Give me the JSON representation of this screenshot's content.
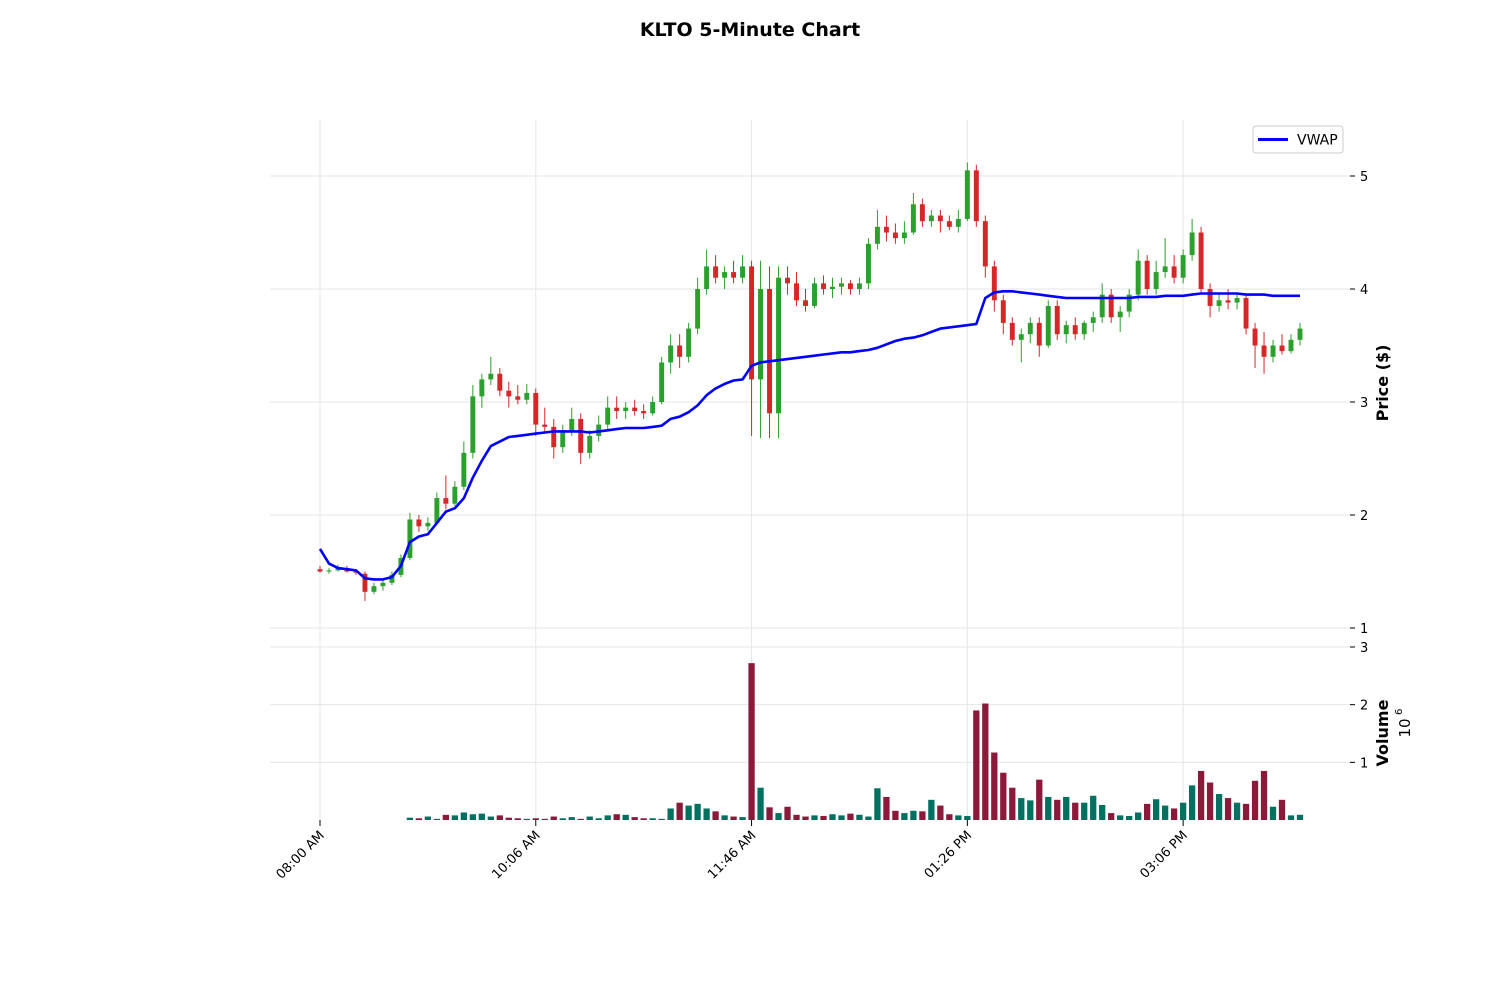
{
  "chart_data": {
    "type": "candlestick",
    "title": "KLTO 5-Minute Chart",
    "ylabel": "Price ($)",
    "volume_label": "Volume",
    "volume_exponent_base": "10",
    "volume_exponent": "6",
    "x_tick_labels": [
      "08:00 AM",
      "10:06 AM",
      "11:46 AM",
      "01:26 PM",
      "03:06 PM"
    ],
    "x_tick_index": [
      0,
      24,
      48,
      72,
      96
    ],
    "bar_count": 110,
    "price_ylim": [
      0.85,
      5.5
    ],
    "price_ticks": [
      1,
      2,
      3,
      4,
      5
    ],
    "volume_ylim": [
      0,
      3000000
    ],
    "volume_ticks": [
      1,
      2,
      3
    ],
    "grid": true,
    "legend": {
      "position": "top-right",
      "entries": [
        "VWAP"
      ]
    },
    "colors": {
      "up": "#2ca02c",
      "down": "#d62728",
      "vwap": "#0000ff",
      "volume_up": "#007060",
      "volume_down": "#8b1a3a",
      "grid": "#e6e6e6"
    },
    "vwap": [
      1.7,
      1.57,
      1.53,
      1.52,
      1.51,
      1.44,
      1.43,
      1.43,
      1.45,
      1.55,
      1.76,
      1.81,
      1.83,
      1.93,
      2.03,
      2.06,
      2.15,
      2.33,
      2.48,
      2.61,
      2.65,
      2.69,
      2.7,
      2.71,
      2.72,
      2.73,
      2.74,
      2.74,
      2.74,
      2.74,
      2.73,
      2.74,
      2.75,
      2.76,
      2.77,
      2.77,
      2.77,
      2.78,
      2.79,
      2.85,
      2.87,
      2.91,
      2.97,
      3.06,
      3.12,
      3.16,
      3.19,
      3.2,
      3.32,
      3.35,
      3.36,
      3.37,
      3.38,
      3.39,
      3.4,
      3.41,
      3.42,
      3.43,
      3.44,
      3.44,
      3.45,
      3.46,
      3.48,
      3.51,
      3.54,
      3.56,
      3.57,
      3.59,
      3.62,
      3.65,
      3.66,
      3.67,
      3.68,
      3.69,
      3.92,
      3.97,
      3.98,
      3.98,
      3.97,
      3.96,
      3.95,
      3.94,
      3.93,
      3.92,
      3.92,
      3.92,
      3.92,
      3.92,
      3.92,
      3.92,
      3.92,
      3.93,
      3.93,
      3.93,
      3.94,
      3.94,
      3.94,
      3.95,
      3.96,
      3.96,
      3.96,
      3.96,
      3.96,
      3.95,
      3.95,
      3.95,
      3.94,
      3.94,
      3.94,
      3.94
    ],
    "candles": [
      {
        "o": 1.52,
        "h": 1.55,
        "l": 1.49,
        "c": 1.5
      },
      {
        "o": 1.5,
        "h": 1.53,
        "l": 1.48,
        "c": 1.51
      },
      {
        "o": 1.51,
        "h": 1.56,
        "l": 1.5,
        "c": 1.53
      },
      {
        "o": 1.53,
        "h": 1.55,
        "l": 1.49,
        "c": 1.5
      },
      {
        "o": 1.5,
        "h": 1.52,
        "l": 1.47,
        "c": 1.49
      },
      {
        "o": 1.48,
        "h": 1.5,
        "l": 1.24,
        "c": 1.32
      },
      {
        "o": 1.32,
        "h": 1.4,
        "l": 1.3,
        "c": 1.37
      },
      {
        "o": 1.37,
        "h": 1.43,
        "l": 1.33,
        "c": 1.4
      },
      {
        "o": 1.4,
        "h": 1.5,
        "l": 1.38,
        "c": 1.47
      },
      {
        "o": 1.47,
        "h": 1.65,
        "l": 1.45,
        "c": 1.62
      },
      {
        "o": 1.62,
        "h": 2.02,
        "l": 1.6,
        "c": 1.96
      },
      {
        "o": 1.96,
        "h": 2.0,
        "l": 1.85,
        "c": 1.9
      },
      {
        "o": 1.9,
        "h": 1.98,
        "l": 1.86,
        "c": 1.93
      },
      {
        "o": 1.93,
        "h": 2.2,
        "l": 1.92,
        "c": 2.15
      },
      {
        "o": 2.15,
        "h": 2.35,
        "l": 2.05,
        "c": 2.1
      },
      {
        "o": 2.1,
        "h": 2.3,
        "l": 2.08,
        "c": 2.25
      },
      {
        "o": 2.25,
        "h": 2.65,
        "l": 2.22,
        "c": 2.55
      },
      {
        "o": 2.55,
        "h": 3.15,
        "l": 2.5,
        "c": 3.05
      },
      {
        "o": 3.05,
        "h": 3.25,
        "l": 2.95,
        "c": 3.2
      },
      {
        "o": 3.2,
        "h": 3.4,
        "l": 3.15,
        "c": 3.25
      },
      {
        "o": 3.25,
        "h": 3.3,
        "l": 3.05,
        "c": 3.1
      },
      {
        "o": 3.1,
        "h": 3.18,
        "l": 2.95,
        "c": 3.05
      },
      {
        "o": 3.05,
        "h": 3.15,
        "l": 2.98,
        "c": 3.02
      },
      {
        "o": 3.02,
        "h": 3.16,
        "l": 2.98,
        "c": 3.08
      },
      {
        "o": 3.08,
        "h": 3.12,
        "l": 2.7,
        "c": 2.8
      },
      {
        "o": 2.8,
        "h": 2.95,
        "l": 2.72,
        "c": 2.78
      },
      {
        "o": 2.78,
        "h": 2.85,
        "l": 2.5,
        "c": 2.6
      },
      {
        "o": 2.6,
        "h": 2.8,
        "l": 2.55,
        "c": 2.75
      },
      {
        "o": 2.75,
        "h": 2.95,
        "l": 2.7,
        "c": 2.85
      },
      {
        "o": 2.85,
        "h": 2.9,
        "l": 2.45,
        "c": 2.55
      },
      {
        "o": 2.55,
        "h": 2.75,
        "l": 2.5,
        "c": 2.7
      },
      {
        "o": 2.7,
        "h": 2.88,
        "l": 2.65,
        "c": 2.8
      },
      {
        "o": 2.8,
        "h": 3.05,
        "l": 2.75,
        "c": 2.95
      },
      {
        "o": 2.95,
        "h": 3.05,
        "l": 2.85,
        "c": 2.92
      },
      {
        "o": 2.92,
        "h": 3.0,
        "l": 2.85,
        "c": 2.95
      },
      {
        "o": 2.95,
        "h": 3.02,
        "l": 2.88,
        "c": 2.92
      },
      {
        "o": 2.92,
        "h": 2.98,
        "l": 2.85,
        "c": 2.9
      },
      {
        "o": 2.9,
        "h": 3.05,
        "l": 2.88,
        "c": 3.0
      },
      {
        "o": 3.0,
        "h": 3.4,
        "l": 2.98,
        "c": 3.35
      },
      {
        "o": 3.35,
        "h": 3.6,
        "l": 3.25,
        "c": 3.5
      },
      {
        "o": 3.5,
        "h": 3.6,
        "l": 3.3,
        "c": 3.4
      },
      {
        "o": 3.4,
        "h": 3.7,
        "l": 3.35,
        "c": 3.65
      },
      {
        "o": 3.65,
        "h": 4.1,
        "l": 3.6,
        "c": 4.0
      },
      {
        "o": 4.0,
        "h": 4.35,
        "l": 3.95,
        "c": 4.2
      },
      {
        "o": 4.2,
        "h": 4.3,
        "l": 4.05,
        "c": 4.1
      },
      {
        "o": 4.1,
        "h": 4.2,
        "l": 4.0,
        "c": 4.15
      },
      {
        "o": 4.15,
        "h": 4.25,
        "l": 4.05,
        "c": 4.1
      },
      {
        "o": 4.1,
        "h": 4.3,
        "l": 4.05,
        "c": 4.2
      },
      {
        "o": 4.2,
        "h": 4.25,
        "l": 2.7,
        "c": 3.2
      },
      {
        "o": 3.2,
        "h": 4.25,
        "l": 2.68,
        "c": 4.0
      },
      {
        "o": 4.0,
        "h": 4.2,
        "l": 2.68,
        "c": 2.9
      },
      {
        "o": 2.9,
        "h": 4.2,
        "l": 2.68,
        "c": 4.1
      },
      {
        "o": 4.1,
        "h": 4.2,
        "l": 3.95,
        "c": 4.05
      },
      {
        "o": 4.05,
        "h": 4.15,
        "l": 3.85,
        "c": 3.9
      },
      {
        "o": 3.9,
        "h": 4.0,
        "l": 3.8,
        "c": 3.85
      },
      {
        "o": 3.85,
        "h": 4.1,
        "l": 3.83,
        "c": 4.05
      },
      {
        "o": 4.05,
        "h": 4.12,
        "l": 3.95,
        "c": 4.0
      },
      {
        "o": 4.0,
        "h": 4.1,
        "l": 3.92,
        "c": 4.02
      },
      {
        "o": 4.02,
        "h": 4.1,
        "l": 3.95,
        "c": 4.05
      },
      {
        "o": 4.05,
        "h": 4.08,
        "l": 3.95,
        "c": 4.0
      },
      {
        "o": 4.0,
        "h": 4.1,
        "l": 3.95,
        "c": 4.05
      },
      {
        "o": 4.05,
        "h": 4.45,
        "l": 4.0,
        "c": 4.4
      },
      {
        "o": 4.4,
        "h": 4.7,
        "l": 4.35,
        "c": 4.55
      },
      {
        "o": 4.55,
        "h": 4.65,
        "l": 4.42,
        "c": 4.5
      },
      {
        "o": 4.5,
        "h": 4.58,
        "l": 4.4,
        "c": 4.45
      },
      {
        "o": 4.45,
        "h": 4.6,
        "l": 4.4,
        "c": 4.5
      },
      {
        "o": 4.5,
        "h": 4.85,
        "l": 4.48,
        "c": 4.75
      },
      {
        "o": 4.75,
        "h": 4.8,
        "l": 4.55,
        "c": 4.6
      },
      {
        "o": 4.6,
        "h": 4.7,
        "l": 4.55,
        "c": 4.65
      },
      {
        "o": 4.65,
        "h": 4.7,
        "l": 4.5,
        "c": 4.6
      },
      {
        "o": 4.6,
        "h": 4.65,
        "l": 4.52,
        "c": 4.55
      },
      {
        "o": 4.55,
        "h": 4.7,
        "l": 4.5,
        "c": 4.62
      },
      {
        "o": 4.62,
        "h": 5.12,
        "l": 4.6,
        "c": 5.05
      },
      {
        "o": 5.05,
        "h": 5.1,
        "l": 4.55,
        "c": 4.6
      },
      {
        "o": 4.6,
        "h": 4.65,
        "l": 4.1,
        "c": 4.2
      },
      {
        "o": 4.2,
        "h": 4.25,
        "l": 3.8,
        "c": 3.9
      },
      {
        "o": 3.9,
        "h": 3.95,
        "l": 3.6,
        "c": 3.7
      },
      {
        "o": 3.7,
        "h": 3.75,
        "l": 3.5,
        "c": 3.55
      },
      {
        "o": 3.55,
        "h": 3.65,
        "l": 3.35,
        "c": 3.6
      },
      {
        "o": 3.6,
        "h": 3.75,
        "l": 3.52,
        "c": 3.7
      },
      {
        "o": 3.7,
        "h": 3.75,
        "l": 3.4,
        "c": 3.5
      },
      {
        "o": 3.5,
        "h": 3.9,
        "l": 3.48,
        "c": 3.85
      },
      {
        "o": 3.85,
        "h": 3.9,
        "l": 3.55,
        "c": 3.6
      },
      {
        "o": 3.6,
        "h": 3.72,
        "l": 3.52,
        "c": 3.68
      },
      {
        "o": 3.68,
        "h": 3.75,
        "l": 3.55,
        "c": 3.6
      },
      {
        "o": 3.6,
        "h": 3.72,
        "l": 3.55,
        "c": 3.7
      },
      {
        "o": 3.7,
        "h": 3.8,
        "l": 3.62,
        "c": 3.75
      },
      {
        "o": 3.75,
        "h": 4.05,
        "l": 3.7,
        "c": 3.95
      },
      {
        "o": 3.95,
        "h": 4.0,
        "l": 3.7,
        "c": 3.75
      },
      {
        "o": 3.75,
        "h": 3.85,
        "l": 3.62,
        "c": 3.8
      },
      {
        "o": 3.8,
        "h": 4.0,
        "l": 3.75,
        "c": 3.95
      },
      {
        "o": 3.95,
        "h": 4.35,
        "l": 3.9,
        "c": 4.25
      },
      {
        "o": 4.25,
        "h": 4.3,
        "l": 3.95,
        "c": 4.0
      },
      {
        "o": 4.0,
        "h": 4.25,
        "l": 3.95,
        "c": 4.15
      },
      {
        "o": 4.15,
        "h": 4.45,
        "l": 4.1,
        "c": 4.2
      },
      {
        "o": 4.2,
        "h": 4.3,
        "l": 4.05,
        "c": 4.1
      },
      {
        "o": 4.1,
        "h": 4.35,
        "l": 4.05,
        "c": 4.3
      },
      {
        "o": 4.3,
        "h": 4.62,
        "l": 4.25,
        "c": 4.5
      },
      {
        "o": 4.5,
        "h": 4.55,
        "l": 3.95,
        "c": 4.0
      },
      {
        "o": 4.0,
        "h": 4.05,
        "l": 3.75,
        "c": 3.85
      },
      {
        "o": 3.85,
        "h": 3.95,
        "l": 3.8,
        "c": 3.9
      },
      {
        "o": 3.9,
        "h": 4.0,
        "l": 3.82,
        "c": 3.88
      },
      {
        "o": 3.88,
        "h": 3.95,
        "l": 3.82,
        "c": 3.92
      },
      {
        "o": 3.92,
        "h": 3.95,
        "l": 3.6,
        "c": 3.65
      },
      {
        "o": 3.65,
        "h": 3.7,
        "l": 3.3,
        "c": 3.5
      },
      {
        "o": 3.5,
        "h": 3.62,
        "l": 3.25,
        "c": 3.4
      },
      {
        "o": 3.4,
        "h": 3.55,
        "l": 3.35,
        "c": 3.5
      },
      {
        "o": 3.5,
        "h": 3.6,
        "l": 3.42,
        "c": 3.45
      },
      {
        "o": 3.45,
        "h": 3.6,
        "l": 3.43,
        "c": 3.55
      },
      {
        "o": 3.55,
        "h": 3.7,
        "l": 3.5,
        "c": 3.65
      }
    ],
    "volumes": [
      0,
      0,
      0,
      0,
      0,
      0,
      0,
      0,
      0,
      0,
      40000,
      30000,
      60000,
      20000,
      90000,
      80000,
      130000,
      100000,
      110000,
      60000,
      80000,
      40000,
      30000,
      20000,
      30000,
      20000,
      60000,
      30000,
      50000,
      20000,
      60000,
      30000,
      80000,
      100000,
      90000,
      50000,
      30000,
      30000,
      20000,
      200000,
      300000,
      250000,
      280000,
      200000,
      150000,
      80000,
      60000,
      50000,
      2720000,
      560000,
      220000,
      120000,
      230000,
      90000,
      60000,
      80000,
      70000,
      100000,
      80000,
      110000,
      90000,
      60000,
      550000,
      400000,
      160000,
      120000,
      160000,
      150000,
      350000,
      250000,
      100000,
      80000,
      70000,
      1900000,
      2020000,
      1170000,
      820000,
      560000,
      380000,
      340000,
      700000,
      400000,
      350000,
      400000,
      300000,
      300000,
      420000,
      260000,
      120000,
      80000,
      70000,
      130000,
      280000,
      360000,
      250000,
      200000,
      300000,
      600000,
      850000,
      650000,
      450000,
      380000,
      300000,
      280000,
      680000,
      850000,
      230000,
      350000,
      80000,
      90000
    ]
  }
}
